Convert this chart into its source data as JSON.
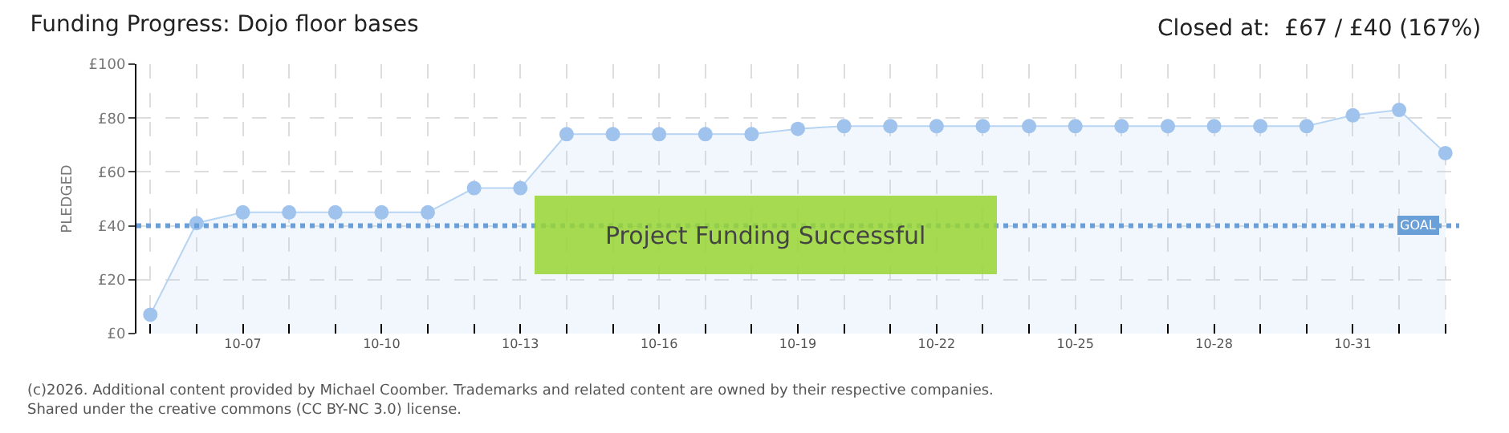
{
  "chart_data": {
    "type": "area",
    "title": "Funding Progress: Dojo floor bases",
    "subtitle": "Closed at:  £67 / £40 (167%)",
    "ylabel": "PLEDGED",
    "categories": [
      null,
      null,
      "10-07",
      null,
      null,
      "10-10",
      null,
      null,
      "10-13",
      null,
      null,
      "10-16",
      null,
      null,
      "10-19",
      null,
      null,
      "10-22",
      null,
      null,
      "10-25",
      null,
      null,
      "10-28",
      null,
      null,
      "10-31",
      null,
      null
    ],
    "series": [
      {
        "color": "#b7d4f3",
        "values": [
          7,
          41,
          45,
          45,
          45,
          45,
          45,
          54,
          54,
          74,
          74,
          74,
          74,
          74,
          76,
          77,
          77,
          77,
          77,
          77,
          77,
          77,
          77,
          77,
          77,
          77,
          81,
          83,
          67
        ]
      },
      {
        "type": "scatter",
        "marker": "circle",
        "color": "#9fc3ec",
        "values": [
          7,
          41,
          45,
          45,
          45,
          45,
          45,
          54,
          54,
          74,
          74,
          74,
          74,
          74,
          76,
          77,
          77,
          77,
          77,
          77,
          77,
          77,
          77,
          77,
          77,
          77,
          81,
          83,
          67
        ]
      }
    ],
    "ylim": [
      0,
      100
    ],
    "yticks": [
      {
        "value": 0,
        "label": "£0"
      },
      {
        "value": 20,
        "label": "£20"
      },
      {
        "value": 40,
        "label": "£40"
      },
      {
        "value": 60,
        "label": "£60"
      },
      {
        "value": 80,
        "label": "£80"
      },
      {
        "value": 100,
        "label": "£100"
      }
    ],
    "grid": true,
    "line_style": "solid",
    "ref_lines": [
      {
        "axis": "y",
        "value": 40,
        "label": "GOAL",
        "color": "#6a9fd8",
        "line_style": "dashed"
      }
    ],
    "annotations": [
      "Project Funding Successful",
      "(c)2026. Additional content provided by Michael Coomber. Trademarks and related content are owned by their respective companies.",
      "Shared under the creative commons (CC BY-NC 3.0) license."
    ]
  }
}
